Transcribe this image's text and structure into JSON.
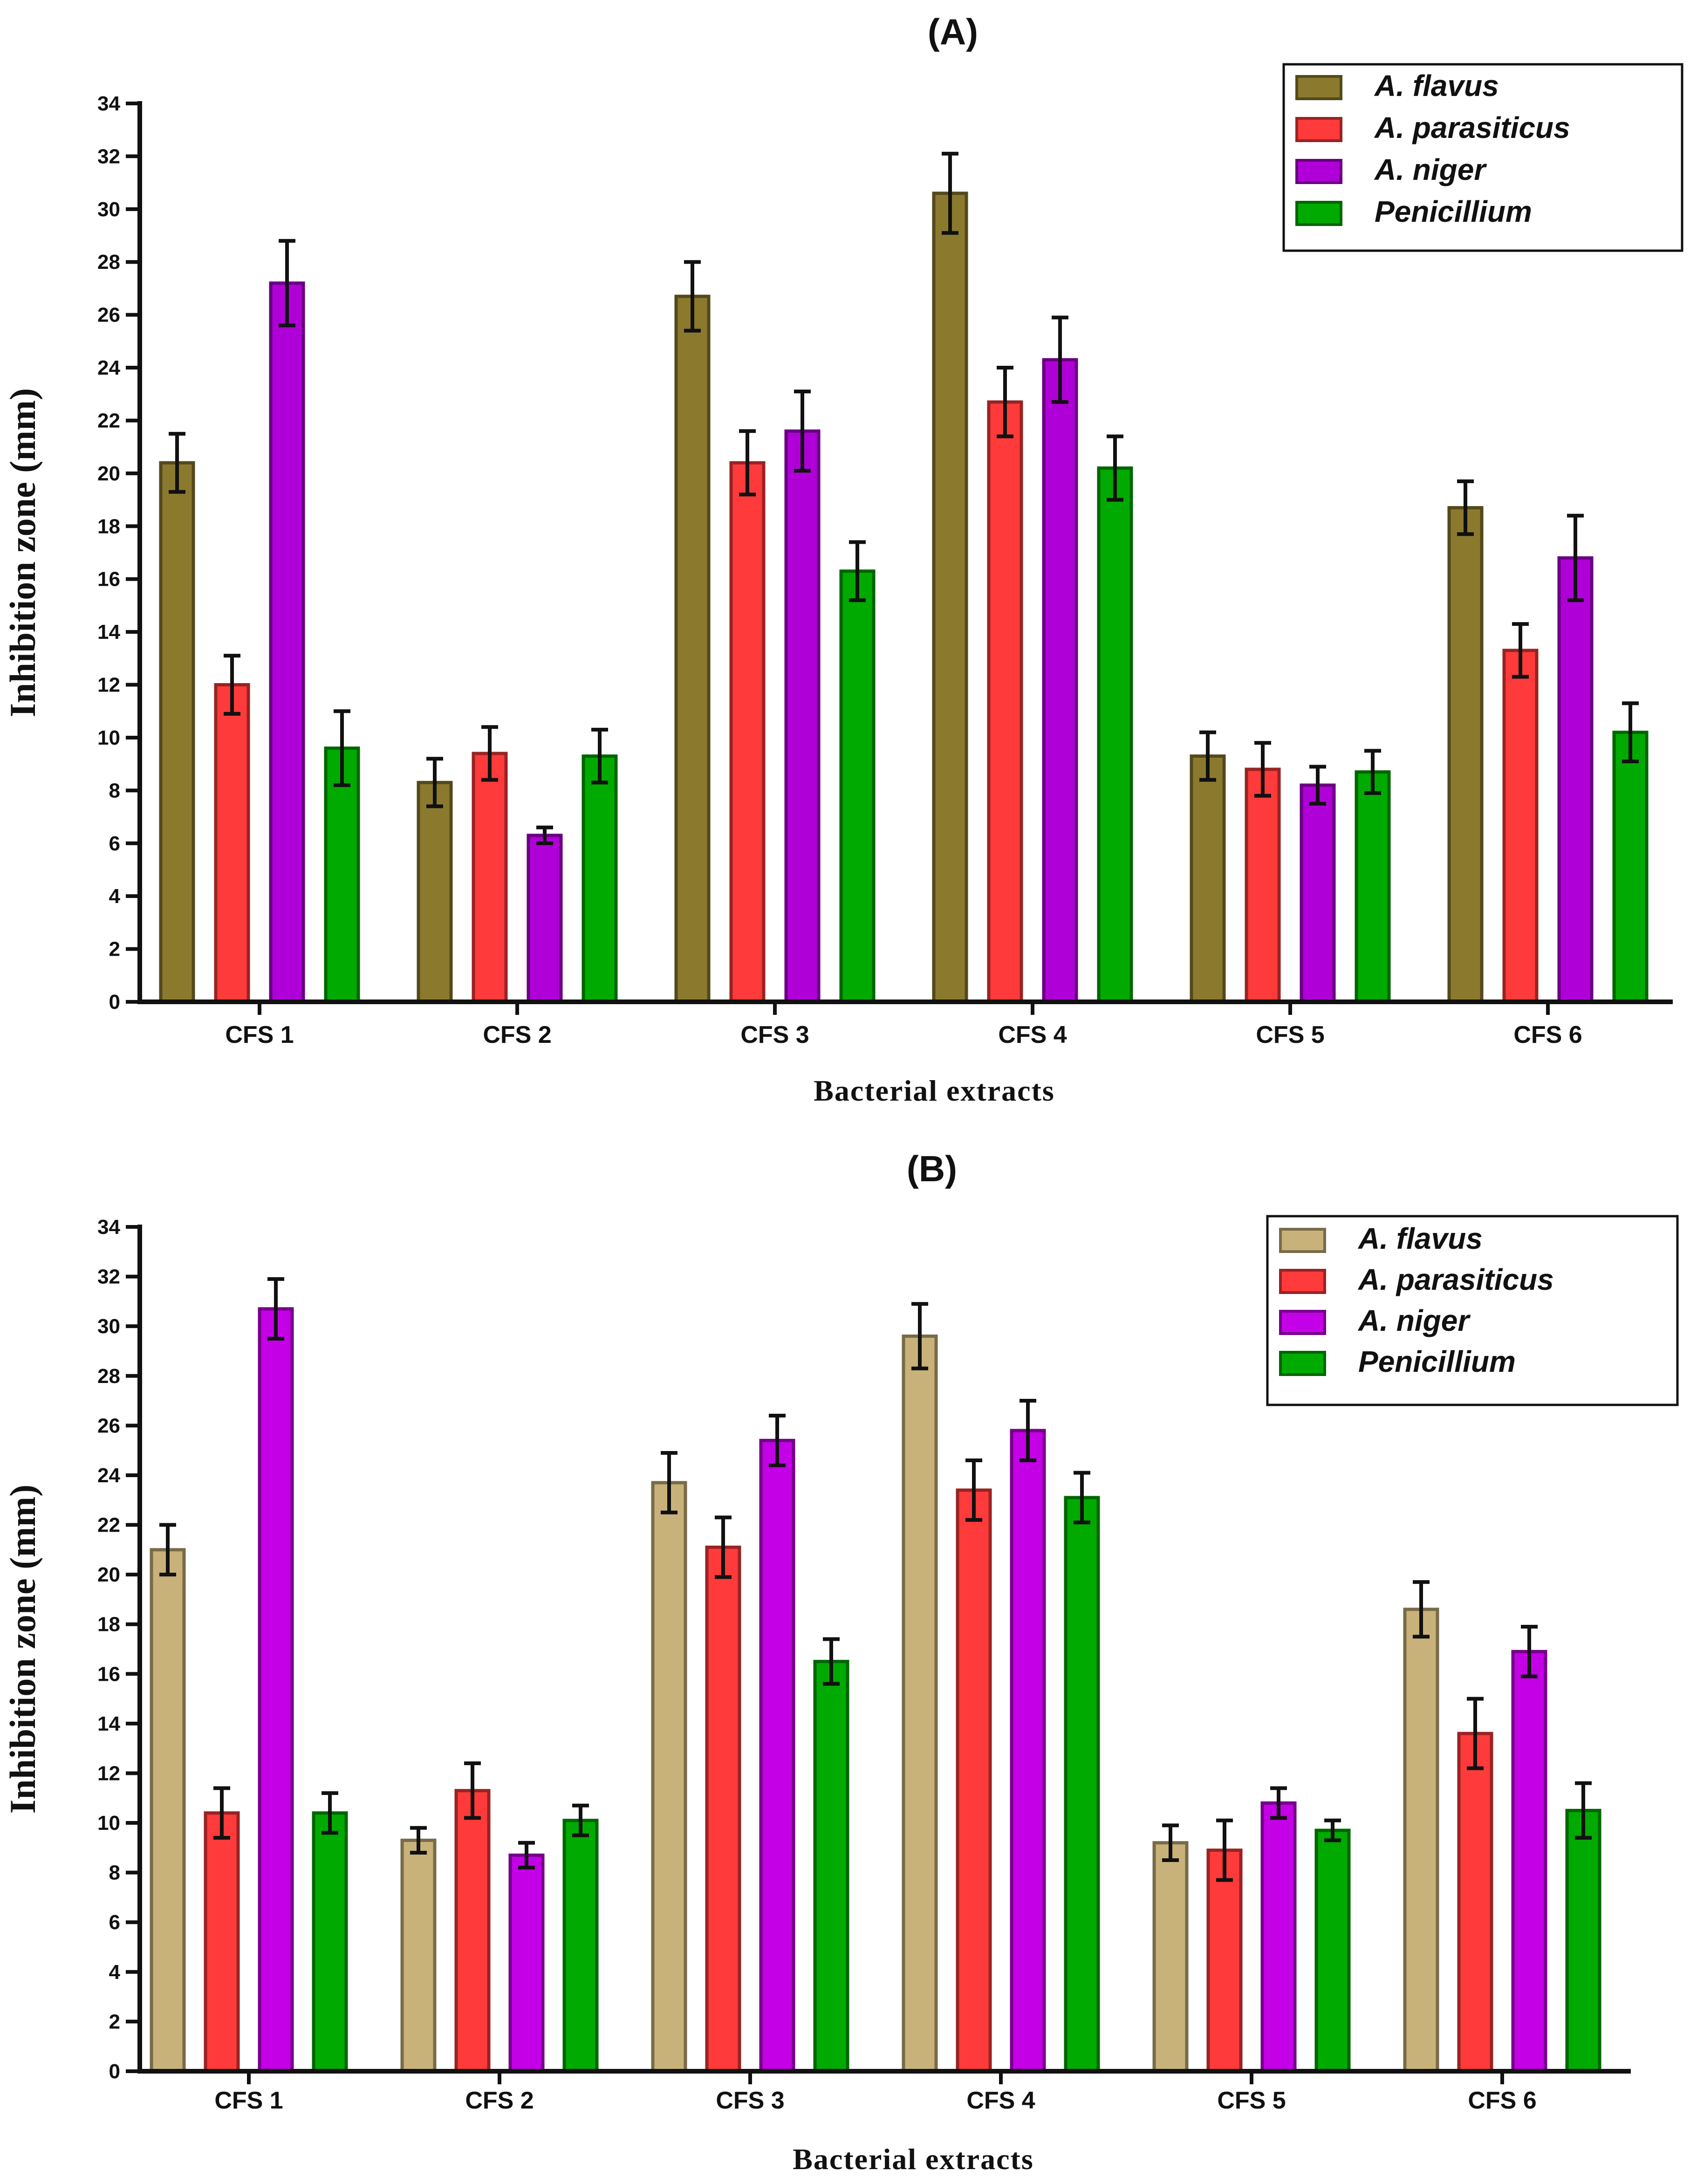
{
  "chart_data": [
    {
      "type": "bar",
      "title": "(A)",
      "xlabel": "Bacterial extracts",
      "ylabel": "Inhibition zone (mm)",
      "ylim": [
        0,
        34
      ],
      "yticks": [
        0,
        2,
        4,
        6,
        8,
        10,
        12,
        14,
        16,
        18,
        20,
        22,
        24,
        26,
        28,
        30,
        32,
        34
      ],
      "legend_position": "top-right",
      "categories": [
        "CFS 1",
        "CFS 2",
        "CFS 3",
        "CFS 4",
        "CFS 5",
        "CFS 6"
      ],
      "series": [
        {
          "name": "A. flavus",
          "color": "#8b7a2e",
          "values": [
            20.4,
            8.3,
            26.7,
            30.6,
            9.3,
            18.7
          ],
          "errors": [
            1.1,
            0.9,
            1.3,
            1.5,
            0.9,
            1.0
          ]
        },
        {
          "name": "A. parasiticus",
          "color": "#ff3a3a",
          "values": [
            12.0,
            9.4,
            20.4,
            22.7,
            8.8,
            13.3
          ],
          "errors": [
            1.1,
            1.0,
            1.2,
            1.3,
            1.0,
            1.0
          ]
        },
        {
          "name": "A. niger",
          "color": "#b000d8",
          "values": [
            27.2,
            6.3,
            21.6,
            24.3,
            8.2,
            16.8
          ],
          "errors": [
            1.6,
            0.3,
            1.5,
            1.6,
            0.7,
            1.6
          ]
        },
        {
          "name": "Penicillium",
          "color": "#00aa00",
          "values": [
            9.6,
            9.3,
            16.3,
            20.2,
            8.7,
            10.2
          ],
          "errors": [
            1.4,
            1.0,
            1.1,
            1.2,
            0.8,
            1.1
          ]
        }
      ]
    },
    {
      "type": "bar",
      "title": "(B)",
      "xlabel": "Bacterial extracts",
      "ylabel": "Inhibition zone (mm)",
      "ylim": [
        0,
        34
      ],
      "yticks": [
        0,
        2,
        4,
        6,
        8,
        10,
        12,
        14,
        16,
        18,
        20,
        22,
        24,
        26,
        28,
        30,
        32,
        34
      ],
      "legend_position": "top-right",
      "categories": [
        "CFS 1",
        "CFS 2",
        "CFS 3",
        "CFS 4",
        "CFS 5",
        "CFS 6"
      ],
      "series": [
        {
          "name": "A. flavus",
          "color": "#c8b27a",
          "values": [
            21.0,
            9.3,
            23.7,
            29.6,
            9.2,
            18.6
          ],
          "errors": [
            1.0,
            0.5,
            1.2,
            1.3,
            0.7,
            1.1
          ]
        },
        {
          "name": "A. parasiticus",
          "color": "#ff3a3a",
          "values": [
            10.4,
            11.3,
            21.1,
            23.4,
            8.9,
            13.6
          ],
          "errors": [
            1.0,
            1.1,
            1.2,
            1.2,
            1.2,
            1.4
          ]
        },
        {
          "name": "A. niger",
          "color": "#c400e6",
          "values": [
            30.7,
            8.7,
            25.4,
            25.8,
            10.8,
            16.9
          ],
          "errors": [
            1.2,
            0.5,
            1.0,
            1.2,
            0.6,
            1.0
          ]
        },
        {
          "name": "Penicillium",
          "color": "#00aa00",
          "values": [
            10.4,
            10.1,
            16.5,
            23.1,
            9.7,
            10.5
          ],
          "errors": [
            0.8,
            0.6,
            0.9,
            1.0,
            0.4,
            1.1
          ]
        }
      ]
    }
  ]
}
